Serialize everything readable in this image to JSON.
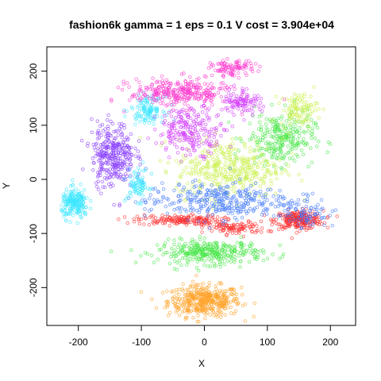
{
  "chart_data": {
    "type": "scatter",
    "title": "fashion6k gamma = 1 eps = 0.1 V cost = 3.904e+04",
    "xlabel": "X",
    "ylabel": "Y",
    "xlim": [
      -250,
      240
    ],
    "ylim": [
      -270,
      245
    ],
    "xticks": [
      -200,
      -100,
      0,
      100,
      200
    ],
    "yticks": [
      -200,
      -100,
      0,
      100,
      200
    ],
    "grid": false,
    "legend": "none",
    "series": [
      {
        "color": "#ffa126",
        "clusters": [
          {
            "cx": 0,
            "cy": -225,
            "sx": 48,
            "sy": 24,
            "n": 420
          }
        ]
      },
      {
        "color": "#ff3030",
        "clusters": [
          {
            "cx": 150,
            "cy": -75,
            "sx": 32,
            "sy": 14,
            "n": 260
          },
          {
            "cx": -40,
            "cy": -75,
            "sx": 55,
            "sy": 8,
            "n": 170
          },
          {
            "cx": 50,
            "cy": -90,
            "sx": 40,
            "sy": 10,
            "n": 100
          }
        ]
      },
      {
        "color": "#46e646",
        "clusters": [
          {
            "cx": 10,
            "cy": -135,
            "sx": 70,
            "sy": 18,
            "n": 330
          },
          {
            "cx": 120,
            "cy": 75,
            "sx": 45,
            "sy": 40,
            "n": 260
          }
        ]
      },
      {
        "color": "#c8f046",
        "clusters": [
          {
            "cx": 40,
            "cy": 20,
            "sx": 70,
            "sy": 45,
            "n": 380
          },
          {
            "cx": 150,
            "cy": 130,
            "sx": 25,
            "sy": 25,
            "n": 100
          }
        ]
      },
      {
        "color": "#4078ff",
        "clusters": [
          {
            "cx": 20,
            "cy": -40,
            "sx": 95,
            "sy": 28,
            "n": 330
          },
          {
            "cx": 160,
            "cy": -60,
            "sx": 30,
            "sy": 25,
            "n": 80
          }
        ]
      },
      {
        "color": "#8a40ff",
        "clusters": [
          {
            "cx": -145,
            "cy": 45,
            "sx": 28,
            "sy": 50,
            "n": 330
          }
        ]
      },
      {
        "color": "#3ce6ff",
        "clusters": [
          {
            "cx": -205,
            "cy": -45,
            "sx": 18,
            "sy": 22,
            "n": 200
          },
          {
            "cx": -90,
            "cy": 130,
            "sx": 22,
            "sy": 20,
            "n": 120
          },
          {
            "cx": -105,
            "cy": -10,
            "sx": 15,
            "sy": 25,
            "n": 80
          }
        ]
      },
      {
        "color": "#ff3cd0",
        "clusters": [
          {
            "cx": -40,
            "cy": 160,
            "sx": 65,
            "sy": 22,
            "n": 320
          },
          {
            "cx": 45,
            "cy": 205,
            "sx": 28,
            "sy": 12,
            "n": 100
          }
        ]
      },
      {
        "color": "#d23cff",
        "clusters": [
          {
            "cx": -20,
            "cy": 90,
            "sx": 45,
            "sy": 35,
            "n": 230
          },
          {
            "cx": 60,
            "cy": 145,
            "sx": 25,
            "sy": 20,
            "n": 100
          }
        ]
      }
    ]
  }
}
